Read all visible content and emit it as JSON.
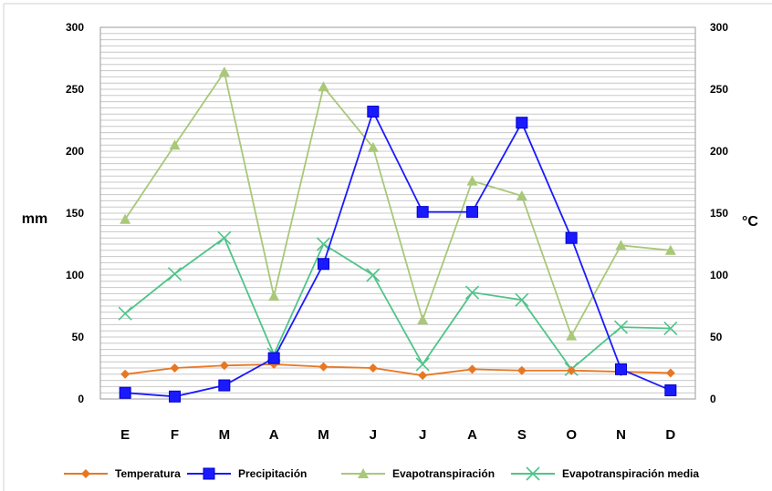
{
  "chart_data": {
    "type": "line",
    "categories": [
      "E",
      "F",
      "M",
      "A",
      "M",
      "J",
      "J",
      "A",
      "S",
      "O",
      "N",
      "D"
    ],
    "ylabel_left": "mm",
    "ylabel_right": "°C",
    "ylim": [
      0,
      300
    ],
    "yticks": [
      0,
      50,
      100,
      150,
      200,
      250,
      300
    ],
    "y2lim": [
      0,
      300
    ],
    "y2ticks": [
      0,
      50,
      100,
      150,
      200,
      250,
      300
    ],
    "grid": true,
    "legend_position": "bottom",
    "series": [
      {
        "name": "Temperatura",
        "color": "#e87722",
        "marker": "diamond",
        "values": [
          20,
          25,
          27,
          28,
          26,
          25,
          19,
          24,
          23,
          23,
          22,
          21
        ]
      },
      {
        "name": "Precipitación",
        "color": "#1a1aff",
        "marker": "square",
        "values": [
          5,
          2,
          11,
          33,
          109,
          232,
          151,
          151,
          223,
          130,
          24,
          7
        ]
      },
      {
        "name": "Evapotranspiración",
        "color": "#a9c878",
        "marker": "triangle",
        "values": [
          145,
          205,
          264,
          83,
          252,
          203,
          64,
          176,
          164,
          51,
          124,
          120
        ]
      },
      {
        "name": "Evapotranspiración media",
        "color": "#4fc48a",
        "marker": "x",
        "values": [
          69,
          101,
          130,
          36,
          125,
          100,
          28,
          86,
          80,
          24,
          58,
          57
        ]
      }
    ]
  }
}
